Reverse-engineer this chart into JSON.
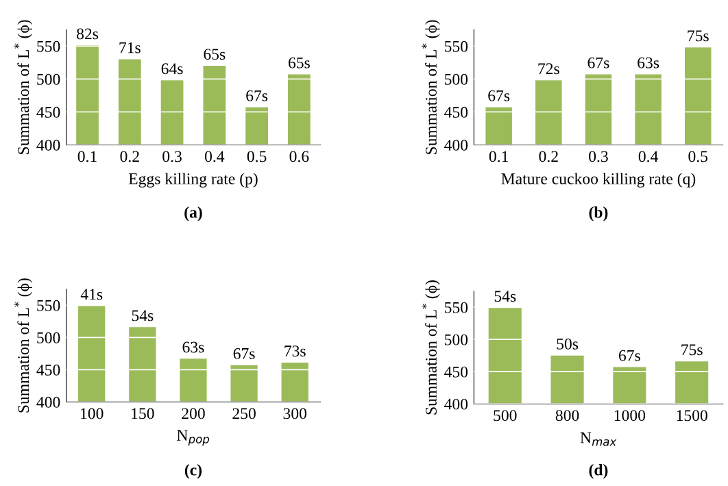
{
  "chart_data": [
    {
      "type": "bar",
      "categories": [
        "0.1",
        "0.2",
        "0.3",
        "0.4",
        "0.5",
        "0.6"
      ],
      "values": [
        551,
        530,
        498,
        520,
        457,
        507
      ],
      "color": "#9bbb59",
      "xlabel": "Eggs killing rate (p)",
      "ylabel": "Summation of L$^{*}$ (ϕ)",
      "ylim": [
        400,
        575
      ],
      "yticks": [
        400,
        450,
        500,
        550
      ],
      "grid": "y",
      "annotations": [
        {
          "text": "82s",
          "x": "0.1",
          "y": 551
        },
        {
          "text": "71s",
          "x": "0.2",
          "y": 530
        },
        {
          "text": "64s",
          "x": "0.3",
          "y": 498
        },
        {
          "text": "65s",
          "x": "0.4",
          "y": 520
        },
        {
          "text": "67s",
          "x": "0.5",
          "y": 457
        },
        {
          "text": "65s",
          "x": "0.6",
          "y": 507
        },
        "(a)"
      ]
    },
    {
      "type": "bar",
      "categories": [
        "0.1",
        "0.2",
        "0.3",
        "0.4",
        "0.5"
      ],
      "values": [
        457,
        498,
        507,
        507,
        548
      ],
      "color": "#9bbb59",
      "xlabel": "Mature cuckoo killing rate (q)",
      "ylabel": "Summation of L$^{*}$ (ϕ)",
      "ylim": [
        400,
        575
      ],
      "yticks": [
        400,
        450,
        500,
        550
      ],
      "grid": "y",
      "annotations": [
        {
          "text": "67s",
          "x": "0.1",
          "y": 457
        },
        {
          "text": "72s",
          "x": "0.2",
          "y": 498
        },
        {
          "text": "67s",
          "x": "0.3",
          "y": 507
        },
        {
          "text": "63s",
          "x": "0.4",
          "y": 507
        },
        {
          "text": "75s",
          "x": "0.5",
          "y": 548
        },
        "(b)"
      ]
    },
    {
      "type": "bar",
      "categories": [
        "100",
        "150",
        "200",
        "250",
        "300"
      ],
      "values": [
        549,
        516,
        467,
        457,
        461
      ],
      "color": "#9bbb59",
      "xlabel": "N$_{pop}$",
      "ylabel": "Summation of L$^{*}$ (ϕ)",
      "ylim": [
        400,
        575
      ],
      "yticks": [
        400,
        450,
        500,
        550
      ],
      "grid": "y",
      "annotations": [
        {
          "text": "41s",
          "x": "100",
          "y": 549
        },
        {
          "text": "54s",
          "x": "150",
          "y": 516
        },
        {
          "text": "63s",
          "x": "200",
          "y": 467
        },
        {
          "text": "67s",
          "x": "250",
          "y": 457
        },
        {
          "text": "73s",
          "x": "300",
          "y": 461
        },
        "(c)"
      ]
    },
    {
      "type": "bar",
      "categories": [
        "500",
        "800",
        "1000",
        "1500"
      ],
      "values": [
        549,
        475,
        457,
        466
      ],
      "color": "#9bbb59",
      "xlabel": "N$_{max}$",
      "ylabel": "Summation of L$^{*}$ (ϕ)",
      "ylim": [
        400,
        575
      ],
      "yticks": [
        400,
        450,
        500,
        550
      ],
      "grid": "y",
      "annotations": [
        {
          "text": "54s",
          "x": "500",
          "y": 549
        },
        {
          "text": "50s",
          "x": "800",
          "y": 475
        },
        {
          "text": "67s",
          "x": "1000",
          "y": 457
        },
        {
          "text": "75s",
          "x": "1500",
          "y": 466
        },
        "(d)"
      ]
    }
  ]
}
